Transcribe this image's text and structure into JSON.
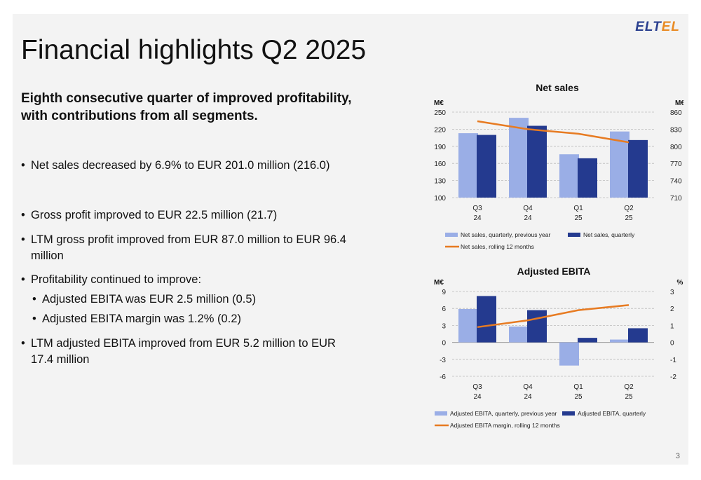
{
  "slide": {
    "title": "Financial highlights Q2 2025",
    "logo": {
      "main": "ELT",
      "accent": "EL"
    },
    "subtitle": "Eighth consecutive quarter of improved profitability, with contributions from all segments.",
    "bullets": [
      {
        "text": "Net sales decreased by 6.9% to EUR 201.0 million (216.0)",
        "level": 1
      },
      {
        "text": "Gross profit improved to EUR 22.5 million (21.7)",
        "level": 1
      },
      {
        "text": "LTM gross profit improved from EUR 87.0 million to EUR 96.4 million",
        "level": 1
      },
      {
        "text": "Profitability continued to improve:",
        "level": 1
      },
      {
        "text": "Adjusted EBITA was EUR 2.5 million (0.5)",
        "level": 2
      },
      {
        "text": "Adjusted EBITA margin was 1.2% (0.2)",
        "level": 2
      },
      {
        "text": "LTM adjusted EBITA improved from EUR 5.2 million to EUR 17.4 million",
        "level": 1
      }
    ],
    "page_number": "3"
  },
  "colors": {
    "prev": "#9aaee6",
    "curr": "#243a8f",
    "line": "#e77b22"
  },
  "chart_data": [
    {
      "type": "bar",
      "title": "Net sales",
      "categories": [
        [
          "Q3",
          "24"
        ],
        [
          "Q4",
          "24"
        ],
        [
          "Q1",
          "25"
        ],
        [
          "Q2",
          "25"
        ]
      ],
      "y_left_label": "M€",
      "y_right_label": "M€",
      "ylim": [
        100,
        250
      ],
      "y_ticks": [
        100,
        130,
        160,
        190,
        220,
        250
      ],
      "y2lim": [
        710,
        860
      ],
      "y2_ticks": [
        710,
        740,
        770,
        800,
        830,
        860
      ],
      "series": [
        {
          "name": "Net sales, quarterly, previous year",
          "kind": "bar",
          "axis": "left",
          "values": [
            213,
            240,
            176,
            216
          ]
        },
        {
          "name": "Net sales, quarterly",
          "kind": "bar",
          "axis": "left",
          "values": [
            210,
            226,
            169,
            201
          ]
        },
        {
          "name": "Net sales, rolling 12 months",
          "kind": "line",
          "axis": "right",
          "values": [
            844,
            830,
            822,
            807
          ]
        }
      ],
      "grid": true,
      "legend_position": "bottom"
    },
    {
      "type": "bar",
      "title": "Adjusted EBITA",
      "categories": [
        [
          "Q3",
          "24"
        ],
        [
          "Q4",
          "24"
        ],
        [
          "Q1",
          "25"
        ],
        [
          "Q2",
          "25"
        ]
      ],
      "y_left_label": "M€",
      "y_right_label": "%",
      "ylim": [
        -6,
        9
      ],
      "y_ticks": [
        -6,
        -3,
        0,
        3,
        6,
        9
      ],
      "y2lim": [
        -2,
        3
      ],
      "y2_ticks": [
        -2,
        -1,
        0,
        1,
        2,
        3
      ],
      "series": [
        {
          "name": "Adjusted EBITA, quarterly, previous year",
          "kind": "bar",
          "axis": "left",
          "values": [
            5.9,
            2.8,
            -4.1,
            0.5
          ]
        },
        {
          "name": "Adjusted EBITA, quarterly",
          "kind": "bar",
          "axis": "left",
          "values": [
            8.2,
            5.7,
            0.8,
            2.5
          ]
        },
        {
          "name": "Adjusted EBITA margin, rolling 12 months",
          "kind": "line",
          "axis": "right",
          "values": [
            0.9,
            1.3,
            1.9,
            2.2
          ]
        }
      ],
      "grid": true,
      "legend_position": "bottom"
    }
  ]
}
